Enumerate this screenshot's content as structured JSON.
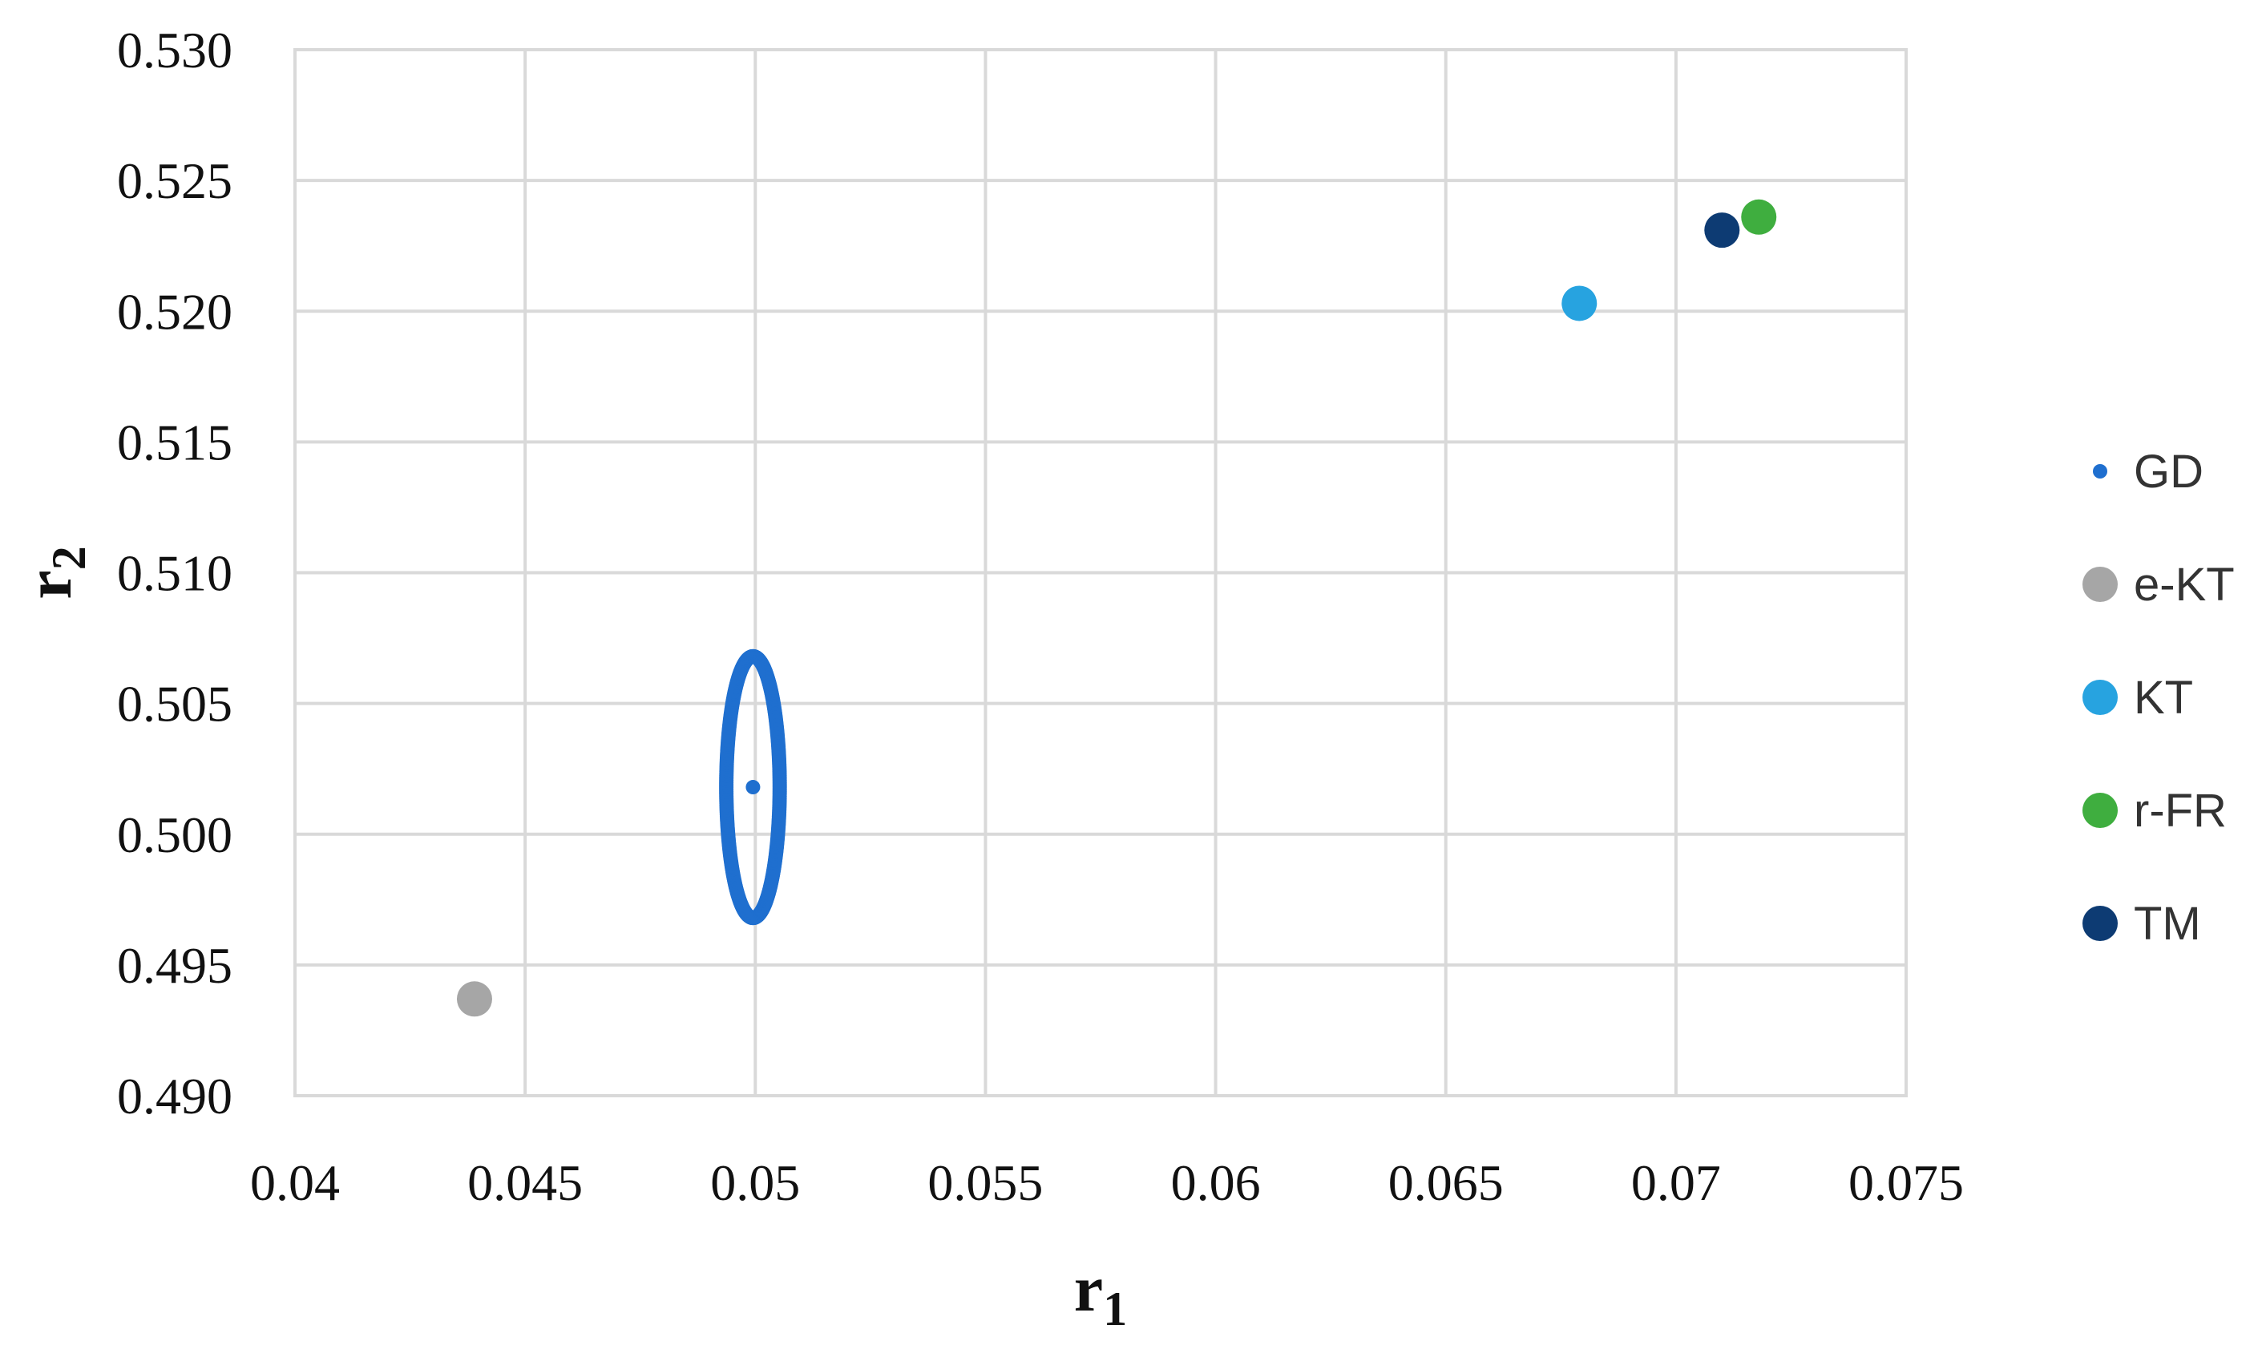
{
  "chart_data": {
    "type": "scatter",
    "title": "",
    "xlabel": "r",
    "xlabel_subscript": "1",
    "ylabel": "r",
    "ylabel_subscript": "2",
    "xlim": [
      0.04,
      0.075
    ],
    "ylim": [
      0.49,
      0.53
    ],
    "x_ticks": [
      0.04,
      0.045,
      0.05,
      0.055,
      0.06,
      0.065,
      0.07,
      0.075
    ],
    "x_tick_labels": [
      "0.04",
      "0.045",
      "0.05",
      "0.055",
      "0.06",
      "0.065",
      "0.07",
      "0.075"
    ],
    "y_ticks": [
      0.49,
      0.495,
      0.5,
      0.505,
      0.51,
      0.515,
      0.52,
      0.525,
      0.53
    ],
    "y_tick_labels": [
      "0.490",
      "0.495",
      "0.500",
      "0.505",
      "0.510",
      "0.515",
      "0.520",
      "0.525",
      "0.530"
    ],
    "grid": true,
    "legend_position": "right",
    "series": [
      {
        "name": "GD",
        "color": "#1f6fcf",
        "marker": "small-dot",
        "center": [
          0.04995,
          0.5018
        ],
        "ellipse": {
          "rx": 0.00058,
          "ry": 0.005
        }
      },
      {
        "name": "e-KT",
        "color": "#a6a6a6",
        "marker": "circle",
        "x": [
          0.0439
        ],
        "y": [
          0.4937
        ]
      },
      {
        "name": "KT",
        "color": "#27a3e0",
        "marker": "circle",
        "x": [
          0.0679
        ],
        "y": [
          0.5203
        ]
      },
      {
        "name": "r-FR",
        "color": "#3fae3f",
        "marker": "circle",
        "x": [
          0.0718
        ],
        "y": [
          0.5236
        ]
      },
      {
        "name": "TM",
        "color": "#0d3b73",
        "marker": "circle",
        "x": [
          0.071
        ],
        "y": [
          0.5231
        ]
      }
    ]
  }
}
